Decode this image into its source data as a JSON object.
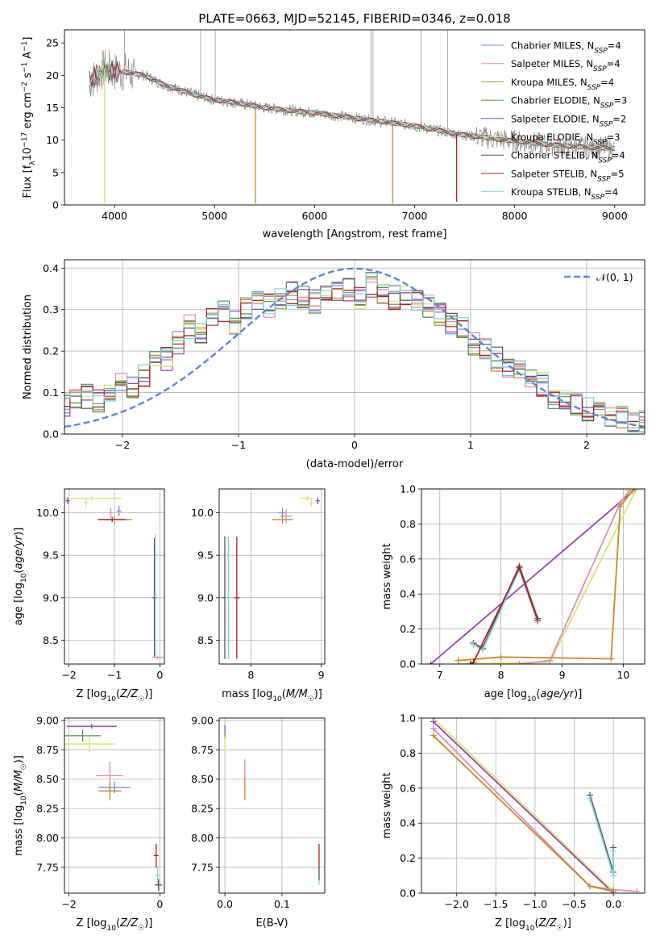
{
  "title": "PLATE=0663, MJD=52145, FIBERID=0346, z=0.018",
  "colors": {
    "Chabrier MILES": "#6f8fd6",
    "Salpeter MILES": "#e389b7",
    "Kroupa MILES": "#c98a24",
    "Chabrier ELODIE": "#4f8f4f",
    "Salpeter ELODIE": "#9b3fb3",
    "Kroupa ELODIE": "#d4e86a",
    "Chabrier STELIB": "#555555",
    "Salpeter STELIB": "#b02020",
    "Kroupa STELIB": "#7fd3e0",
    "Normal": "#5b87d8",
    "grid": "#b0b0b0"
  },
  "chart_data": [
    {
      "id": "spectrum",
      "type": "line",
      "xlabel": "wavelength [Angstrom, rest frame]",
      "ylabel": "Flux [f_λ10^-17 erg cm^-2 s^-1 A^-1]",
      "xlim": [
        3500,
        9300
      ],
      "ylim": [
        0,
        27
      ],
      "xticks": [
        4000,
        5000,
        6000,
        7000,
        8000,
        9000
      ],
      "yticks": [
        0,
        5,
        10,
        15,
        20,
        25
      ],
      "grid": false,
      "legend_position": "top-right",
      "legend": [
        "Chabrier MILES, N_SSP=4",
        "Salpeter MILES, N_SSP=4",
        "Kroupa MILES, N_SSP=4",
        "Chabrier ELODIE, N_SSP=3",
        "Salpeter ELODIE, N_SSP=2",
        "Kroupa ELODIE, N_SSP=3",
        "Chabrier STELIB, N_SSP=4",
        "Salpeter STELIB, N_SSP=5",
        "Kroupa STELIB, N_SSP=4"
      ],
      "continuum": {
        "x": [
          3750,
          3900,
          4000,
          4100,
          4300,
          4500,
          4800,
          5000,
          5200,
          5500,
          5800,
          6000,
          6300,
          6600,
          6800,
          7000,
          7400,
          7800,
          8200,
          8600,
          9000
        ],
        "y": [
          19,
          21,
          20.5,
          20.5,
          20,
          18.5,
          17,
          16.2,
          15.8,
          15,
          14.5,
          14.2,
          13.6,
          13,
          12.6,
          12.2,
          11,
          10.2,
          9.5,
          9,
          8.7
        ]
      },
      "model_drops": [
        {
          "series": "Kroupa ELODIE",
          "x": 3900,
          "y": 0.3
        },
        {
          "series": "Kroupa MILES",
          "x": 5410,
          "y": 0.2
        },
        {
          "series": "Kroupa MILES",
          "x": 6780,
          "y": 0.2
        },
        {
          "series": "Salpeter STELIB",
          "x": 7420,
          "y": 0.5
        }
      ],
      "emission_lines": [
        4100,
        4861,
        5007,
        6563,
        6584,
        7065,
        7330
      ]
    },
    {
      "id": "residuals",
      "type": "line",
      "xlabel": "(data-model)/error",
      "ylabel": "Normed distribution",
      "xlim": [
        -2.5,
        2.5
      ],
      "ylim": [
        0,
        0.42
      ],
      "xticks": [
        -2,
        -1,
        0,
        1,
        2
      ],
      "yticks": [
        0.0,
        0.1,
        0.2,
        0.3,
        0.4
      ],
      "grid": true,
      "legend": [
        "𝒩(0, 1)"
      ],
      "legend_position": "top-right",
      "histogram_base": [
        0.07,
        0.08,
        0.09,
        0.08,
        0.1,
        0.12,
        0.11,
        0.14,
        0.19,
        0.18,
        0.22,
        0.26,
        0.24,
        0.28,
        0.3,
        0.27,
        0.3,
        0.32,
        0.31,
        0.33,
        0.34,
        0.33,
        0.32,
        0.35,
        0.34,
        0.35,
        0.33,
        0.36,
        0.34,
        0.33,
        0.34,
        0.32,
        0.31,
        0.29,
        0.27,
        0.26,
        0.22,
        0.21,
        0.18,
        0.16,
        0.15,
        0.13,
        0.12,
        0.09,
        0.08,
        0.07,
        0.06,
        0.05,
        0.04,
        0.04,
        0.03,
        0.03
      ]
    },
    {
      "id": "age-vs-Z",
      "type": "scatter",
      "xlabel": "Z [log10(Z/Z☉)]",
      "ylabel": "age  [log10(age/yr)]",
      "xlim": [
        -2.1,
        0.1
      ],
      "ylim": [
        8.22,
        10.28
      ],
      "xticks": [
        -2,
        -1,
        0
      ],
      "yticks": [
        8.5,
        9.0,
        9.5,
        10.0
      ],
      "grid": true,
      "points": [
        {
          "series": "Kroupa ELODIE",
          "x": -1.5,
          "y": 10.17,
          "xerr": 0.65,
          "yerr": 0.03
        },
        {
          "series": "Salpeter ELODIE",
          "x": -2.03,
          "y": 10.14,
          "xerr": 0.05,
          "yerr": 0.04
        },
        {
          "series": "Kroupa ELODIE",
          "x": -1.62,
          "y": 10.12,
          "xerr": 0.05,
          "yerr": 0.05
        },
        {
          "series": "Chabrier MILES",
          "x": -0.9,
          "y": 10.02,
          "xerr": 0.05,
          "yerr": 0.06
        },
        {
          "series": "Salpeter MILES",
          "x": -1.08,
          "y": 10.0,
          "xerr": 0.04,
          "yerr": 0.06
        },
        {
          "series": "Kroupa MILES",
          "x": -1.0,
          "y": 9.92,
          "xerr": 0.38,
          "yerr": 0.05
        },
        {
          "series": "Salpeter STELIB",
          "x": -1.05,
          "y": 9.92,
          "xerr": 0.3,
          "yerr": 0.03
        },
        {
          "series": "Chabrier STELIB",
          "x": -0.12,
          "y": 9.0,
          "xerr": 0.05,
          "yerr": 0.7
        },
        {
          "series": "Kroupa STELIB",
          "x": -0.1,
          "y": 9.03,
          "xerr": 0.04,
          "yerr": 0.72
        },
        {
          "series": "Salpeter MILES",
          "x": -0.05,
          "y": 8.3,
          "xerr": 0.12,
          "yerr": 0.02
        }
      ]
    },
    {
      "id": "age-vs-mass",
      "type": "scatter",
      "xlabel": "mass [log10(M/M☉)]",
      "ylabel": "",
      "xlim": [
        7.55,
        9.05
      ],
      "ylim": [
        8.22,
        10.28
      ],
      "xticks": [
        8,
        9
      ],
      "yticks": [
        8.5,
        9.0,
        9.5,
        10.0
      ],
      "grid": true,
      "points": [
        {
          "series": "Kroupa ELODIE",
          "x": 8.8,
          "y": 10.17,
          "xerr": 0.1,
          "yerr": 0.03
        },
        {
          "series": "Salpeter ELODIE",
          "x": 8.95,
          "y": 10.14,
          "xerr": 0.03,
          "yerr": 0.04
        },
        {
          "series": "Kroupa ELODIE",
          "x": 8.86,
          "y": 10.12,
          "xerr": 0.03,
          "yerr": 0.05
        },
        {
          "series": "Chabrier MILES",
          "x": 8.45,
          "y": 10.0,
          "xerr": 0.06,
          "yerr": 0.06
        },
        {
          "series": "Salpeter MILES",
          "x": 8.5,
          "y": 9.96,
          "xerr": 0.08,
          "yerr": 0.08
        },
        {
          "series": "Kroupa MILES",
          "x": 8.45,
          "y": 9.92,
          "xerr": 0.15,
          "yerr": 0.05
        },
        {
          "series": "Chabrier STELIB",
          "x": 7.63,
          "y": 9.0,
          "xerr": 0.04,
          "yerr": 0.72
        },
        {
          "series": "Kroupa STELIB",
          "x": 7.68,
          "y": 9.0,
          "xerr": 0.04,
          "yerr": 0.72
        },
        {
          "series": "Salpeter STELIB",
          "x": 7.8,
          "y": 9.0,
          "xerr": 0.04,
          "yerr": 0.72
        }
      ]
    },
    {
      "id": "weight-vs-age",
      "type": "line",
      "xlabel": "age  [log10(age/yr)]",
      "ylabel": "mass weight",
      "xlim": [
        6.7,
        10.35
      ],
      "ylim": [
        0,
        1.0
      ],
      "xticks": [
        7,
        8,
        9,
        10
      ],
      "yticks": [
        0.0,
        0.2,
        0.4,
        0.6,
        0.8,
        1.0
      ],
      "grid": true,
      "series": [
        {
          "name": "Salpeter ELODIE",
          "x": [
            6.85,
            10.2
          ],
          "y": [
            0.0,
            1.0
          ]
        },
        {
          "name": "Kroupa ELODIE",
          "x": [
            7.3,
            8.8,
            10.2
          ],
          "y": [
            0.0,
            0.01,
            0.99
          ]
        },
        {
          "name": "Salpeter MILES",
          "x": [
            8.3,
            8.8,
            9.95,
            10.1
          ],
          "y": [
            0.0,
            0.02,
            0.92,
            0.99
          ]
        },
        {
          "name": "Kroupa MILES",
          "x": [
            7.3,
            8.0,
            9.8,
            9.95,
            10.15
          ],
          "y": [
            0.02,
            0.04,
            0.03,
            0.9,
            0.99
          ]
        },
        {
          "name": "Chabrier STELIB",
          "x": [
            7.55,
            7.7,
            8.3,
            8.6
          ],
          "y": [
            0.12,
            0.09,
            0.56,
            0.26
          ]
        },
        {
          "name": "Kroupa STELIB",
          "x": [
            7.55,
            7.7,
            8.3,
            8.6
          ],
          "y": [
            0.11,
            0.08,
            0.54,
            0.24
          ]
        },
        {
          "name": "Salpeter STELIB",
          "x": [
            7.5,
            7.55,
            8.3,
            8.6
          ],
          "y": [
            0.0,
            0.01,
            0.55,
            0.25
          ]
        }
      ]
    },
    {
      "id": "mass-vs-Z",
      "type": "scatter",
      "xlabel": "Z [log10(Z/Z☉)]",
      "ylabel": "mass [log10(M/M☉)]",
      "xlim": [
        -2.1,
        0.1
      ],
      "ylim": [
        7.53,
        9.02
      ],
      "xticks": [
        -2,
        0
      ],
      "yticks": [
        7.75,
        8.0,
        8.25,
        8.5,
        8.75,
        9.0
      ],
      "grid": true,
      "points": [
        {
          "series": "Salpeter ELODIE",
          "x": -1.5,
          "y": 8.95,
          "xerr": 0.55,
          "yerr": 0.02
        },
        {
          "series": "Chabrier ELODIE",
          "x": -1.7,
          "y": 8.87,
          "xerr": 0.4,
          "yerr": 0.05
        },
        {
          "series": "Kroupa ELODIE",
          "x": -1.55,
          "y": 8.8,
          "xerr": 0.55,
          "yerr": 0.07
        },
        {
          "series": "Salpeter MILES",
          "x": -1.1,
          "y": 8.53,
          "xerr": 0.3,
          "yerr": 0.12
        },
        {
          "series": "Chabrier MILES",
          "x": -1.0,
          "y": 8.43,
          "xerr": 0.35,
          "yerr": 0.05
        },
        {
          "series": "Kroupa MILES",
          "x": -1.1,
          "y": 8.4,
          "xerr": 0.25,
          "yerr": 0.08
        },
        {
          "series": "Salpeter STELIB",
          "x": -0.08,
          "y": 7.85,
          "xerr": 0.05,
          "yerr": 0.1
        },
        {
          "series": "Kroupa STELIB",
          "x": -0.05,
          "y": 7.68,
          "xerr": 0.05,
          "yerr": 0.08
        },
        {
          "series": "Chabrier STELIB",
          "x": -0.03,
          "y": 7.6,
          "xerr": 0.08,
          "yerr": 0.05
        }
      ]
    },
    {
      "id": "mass-vs-EBV",
      "type": "scatter",
      "xlabel": "E(B-V)",
      "ylabel": "",
      "xlim": [
        -0.01,
        0.175
      ],
      "ylim": [
        7.53,
        9.02
      ],
      "xticks": [
        0.0,
        0.1
      ],
      "yticks": [
        7.75,
        8.0,
        8.25,
        8.5,
        8.75,
        9.0
      ],
      "grid": true,
      "points": [
        {
          "series": "Salpeter ELODIE",
          "x": 0.0,
          "y": 8.93,
          "xerr": 0.0,
          "yerr": 0.03
        },
        {
          "series": "Chabrier ELODIE",
          "x": 0.0,
          "y": 8.87,
          "xerr": 0.0,
          "yerr": 0.04
        },
        {
          "series": "Kroupa ELODIE",
          "x": 0.0,
          "y": 8.8,
          "xerr": 0.0,
          "yerr": 0.06
        },
        {
          "series": "Salpeter MILES",
          "x": 0.035,
          "y": 8.55,
          "xerr": 0.0,
          "yerr": 0.12
        },
        {
          "series": "Kroupa MILES",
          "x": 0.035,
          "y": 8.42,
          "xerr": 0.0,
          "yerr": 0.1
        },
        {
          "series": "Salpeter STELIB",
          "x": 0.165,
          "y": 7.85,
          "xerr": 0.0,
          "yerr": 0.1
        },
        {
          "series": "Kroupa STELIB",
          "x": 0.165,
          "y": 7.68,
          "xerr": 0.0,
          "yerr": 0.08
        },
        {
          "series": "Chabrier STELIB",
          "x": 0.165,
          "y": 7.7,
          "xerr": 0.0,
          "yerr": 0.06
        }
      ]
    },
    {
      "id": "weight-vs-Z",
      "type": "line",
      "xlabel": "Z [log10(Z/Z☉)]",
      "ylabel": "mass weight",
      "xlim": [
        -2.45,
        0.4
      ],
      "ylim": [
        0,
        1.0
      ],
      "xticks": [
        -2.0,
        -1.5,
        -1.0,
        -0.5,
        0.0
      ],
      "yticks": [
        0.0,
        0.2,
        0.4,
        0.6,
        0.8,
        1.0
      ],
      "grid": true,
      "series": [
        {
          "name": "Kroupa ELODIE",
          "x": [
            -2.3,
            0.0
          ],
          "y": [
            1.0,
            0.01
          ]
        },
        {
          "name": "Salpeter ELODIE",
          "x": [
            -2.3,
            0.0
          ],
          "y": [
            0.98,
            0.0
          ]
        },
        {
          "name": "Salpeter MILES",
          "x": [
            -2.3,
            -0.3,
            0.0,
            0.3
          ],
          "y": [
            0.94,
            0.04,
            0.02,
            0.01
          ]
        },
        {
          "name": "Kroupa MILES",
          "x": [
            -2.3,
            -0.3,
            0.0
          ],
          "y": [
            0.9,
            0.04,
            0.01
          ]
        },
        {
          "name": "Chabrier STELIB",
          "x": [
            -0.3,
            0.0,
            0.0
          ],
          "y": [
            0.56,
            0.12,
            0.26
          ]
        },
        {
          "name": "Kroupa STELIB",
          "x": [
            -0.3,
            0.0,
            0.0
          ],
          "y": [
            0.54,
            0.1,
            0.24
          ]
        }
      ]
    }
  ]
}
